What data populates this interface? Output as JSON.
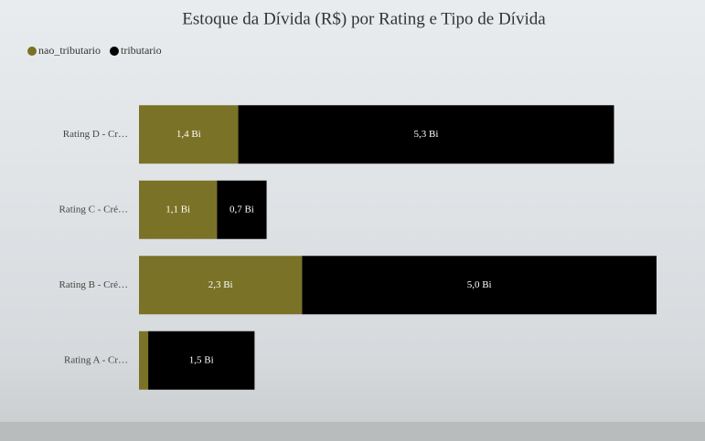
{
  "chart_data": {
    "type": "stacked-bar-horizontal",
    "title": "Estoque da Dívida (R$) por Rating e Tipo de Dívida",
    "categories": [
      "Rating D - Cr…",
      "Rating C - Cré…",
      "Rating B - Cré…",
      "Rating A - Cr…"
    ],
    "series": [
      {
        "name": "nao_tributario",
        "color": "#7a7226",
        "values": [
          1.4,
          1.1,
          2.3,
          0.13
        ],
        "value_labels": [
          "1,4 Bi",
          "1,1 Bi",
          "2,3 Bi",
          null
        ]
      },
      {
        "name": "tributario",
        "color": "#000000",
        "values": [
          5.3,
          0.7,
          5.0,
          1.5
        ],
        "value_labels": [
          "5,3 Bi",
          "0,7 Bi",
          "5,0 Bi",
          "1,5 Bi"
        ]
      }
    ],
    "legend": "top-left"
  }
}
